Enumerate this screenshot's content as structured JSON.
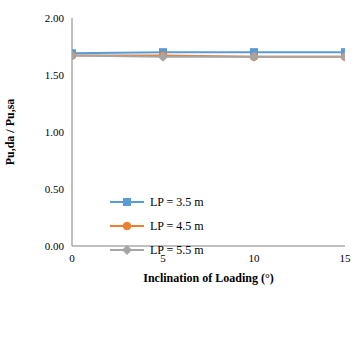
{
  "chart_data": {
    "type": "line",
    "x_label": "Inclination of Loading (°)",
    "y_label": "Pu,da / Pu,sa",
    "x": [
      0,
      5,
      10,
      15
    ],
    "xlim": [
      0,
      15
    ],
    "xticks": [
      0,
      5,
      10,
      15
    ],
    "ylim": [
      0,
      2
    ],
    "yticks": [
      {
        "value": 0,
        "label": "0.00"
      },
      {
        "value": 0.5,
        "label": "0.50"
      },
      {
        "value": 1,
        "label": "1.00"
      },
      {
        "value": 1.5,
        "label": "1.50"
      },
      {
        "value": 2,
        "label": "2.00"
      }
    ],
    "grid": false,
    "legend": "lower left",
    "series": [
      {
        "name": "LP = 3.5 m",
        "color": "#5b9bd5",
        "marker": "square",
        "values": [
          1.69,
          1.7,
          1.7,
          1.7
        ]
      },
      {
        "name": "LP = 4.5 m",
        "color": "#ed7d31",
        "marker": "circle",
        "values": [
          1.67,
          1.67,
          1.66,
          1.66
        ]
      },
      {
        "name": "LP = 5.5 m",
        "color": "#a5a5a5",
        "marker": "diamond",
        "values": [
          1.67,
          1.66,
          1.66,
          1.66
        ]
      }
    ]
  }
}
